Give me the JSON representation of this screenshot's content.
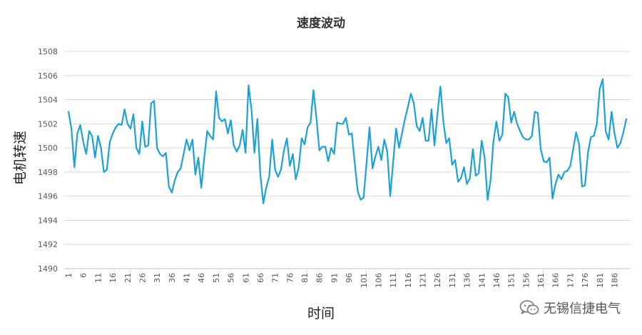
{
  "chart_data": {
    "type": "line",
    "title": "速度波动",
    "xlabel": "时间",
    "ylabel": "电机转速",
    "ylim": [
      1490,
      1508
    ],
    "yticks": [
      1490,
      1492,
      1494,
      1496,
      1498,
      1500,
      1502,
      1504,
      1506,
      1508
    ],
    "xticks": [
      1,
      6,
      11,
      16,
      21,
      26,
      31,
      36,
      41,
      46,
      51,
      56,
      61,
      66,
      71,
      76,
      81,
      86,
      91,
      96,
      101,
      106,
      111,
      116,
      121,
      126,
      131,
      136,
      141,
      146,
      151,
      156,
      161,
      166,
      171,
      176,
      181,
      186
    ],
    "grid": true,
    "legend": "none",
    "line_color": "#1BA1D6",
    "series": [
      {
        "values": [
          1503.0,
          1501.6,
          1498.4,
          1501.2,
          1501.9,
          1500.5,
          1499.5,
          1501.4,
          1501.0,
          1499.2,
          1501.0,
          1500.0,
          1498.0,
          1498.2,
          1500.5,
          1501.2,
          1501.7,
          1502.0,
          1501.9,
          1503.2,
          1502.0,
          1501.6,
          1502.8,
          1500.0,
          1499.5,
          1502.2,
          1500.1,
          1500.2,
          1503.7,
          1503.9,
          1500.0,
          1499.5,
          1499.3,
          1499.6,
          1496.8,
          1496.3,
          1497.3,
          1498.0,
          1498.3,
          1499.5,
          1500.7,
          1499.8,
          1500.7,
          1497.8,
          1499.2,
          1496.7,
          1499.2,
          1501.4,
          1501.0,
          1500.7,
          1504.7,
          1502.5,
          1502.2,
          1502.4,
          1501.2,
          1502.3,
          1500.2,
          1499.7,
          1500.2,
          1501.5,
          1499.6,
          1505.2,
          1503.2,
          1499.6,
          1502.4,
          1497.8,
          1495.4,
          1496.7,
          1497.6,
          1500.7,
          1498.2,
          1497.6,
          1498.2,
          1499.8,
          1500.8,
          1498.5,
          1499.5,
          1497.4,
          1498.4,
          1500.8,
          1500.3,
          1501.7,
          1502.1,
          1504.8,
          1502.5,
          1499.8,
          1500.1,
          1500.1,
          1498.9,
          1500.0,
          1499.5,
          1502.1,
          1502.0,
          1502.0,
          1502.5,
          1501.1,
          1501.2,
          1498.7,
          1496.4,
          1495.7,
          1495.9,
          1498.8,
          1501.7,
          1498.3,
          1499.3,
          1500.1,
          1499.0,
          1500.7,
          1499.7,
          1496.0,
          1498.8,
          1501.6,
          1500.0,
          1501.2,
          1502.4,
          1503.4,
          1504.5,
          1503.7,
          1501.8,
          1501.4,
          1502.5,
          1500.6,
          1500.6,
          1503.2,
          1500.2,
          1502.8,
          1505.1,
          1502.2,
          1500.4,
          1500.8,
          1498.6,
          1499.0,
          1497.2,
          1497.5,
          1498.4,
          1497.0,
          1497.5,
          1499.9,
          1497.7,
          1497.9,
          1500.6,
          1499.2,
          1495.7,
          1497.3,
          1500.6,
          1502.2,
          1500.6,
          1501.1,
          1504.5,
          1504.2,
          1502.1,
          1503.0,
          1502.0,
          1501.4,
          1500.9,
          1500.7,
          1500.7,
          1501.0,
          1503.0,
          1502.9,
          1499.9,
          1498.9,
          1498.8,
          1499.2,
          1495.8,
          1497.0,
          1497.8,
          1497.4,
          1498.0,
          1498.1,
          1498.5,
          1499.9,
          1501.3,
          1500.3,
          1496.8,
          1496.9,
          1499.6,
          1500.9,
          1501.0,
          1502.0,
          1504.9,
          1505.7,
          1501.4,
          1500.7,
          1503.0,
          1501.2,
          1500.0,
          1500.4,
          1501.3,
          1502.4
        ]
      }
    ]
  },
  "watermark": {
    "icon": "wechat-icon",
    "text": "无锡信捷电气"
  }
}
